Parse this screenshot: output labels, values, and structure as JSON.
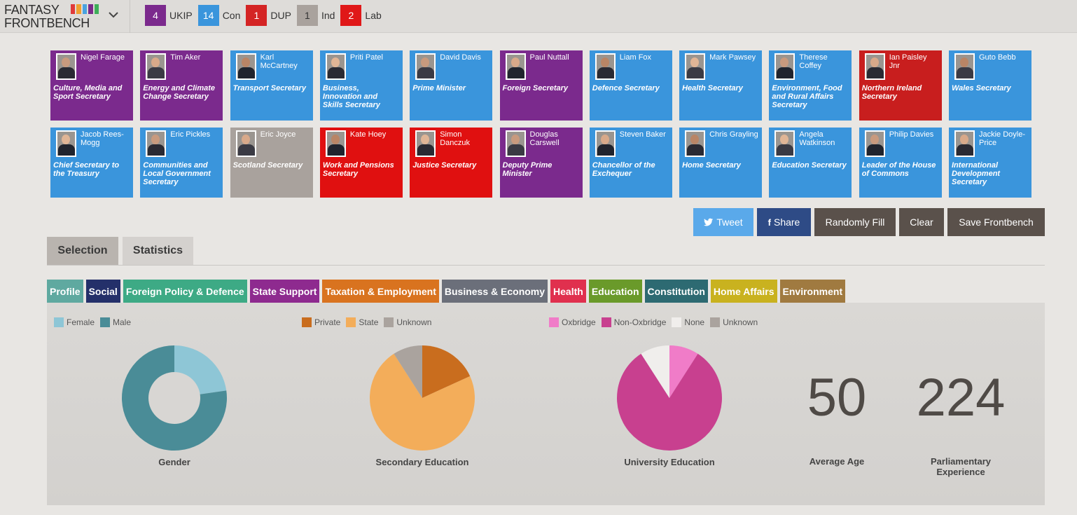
{
  "app": {
    "logo_line1": "FANTASY",
    "logo_line2": "FRONTBENCH",
    "rainbow_colors": [
      "#e03a3a",
      "#f0a030",
      "#4aa3df",
      "#7a2a8a",
      "#3fae5a"
    ]
  },
  "party_counts": [
    {
      "count": "4",
      "name": "UKIP",
      "color": "#7b2a8d"
    },
    {
      "count": "14",
      "name": "Con",
      "color": "#3a95dc"
    },
    {
      "count": "1",
      "name": "DUP",
      "color": "#d42424"
    },
    {
      "count": "1",
      "name": "Ind",
      "color": "#a9a29d"
    },
    {
      "count": "2",
      "name": "Lab",
      "color": "#e01818"
    }
  ],
  "cabinet": [
    {
      "name": "Nigel Farage",
      "role": "Culture, Media and Sport Secretary",
      "party": "UKIP"
    },
    {
      "name": "Tim Aker",
      "role": "Energy and Climate Change Secretary",
      "party": "UKIP"
    },
    {
      "name": "Karl McCartney",
      "role": "Transport Secretary",
      "party": "Con"
    },
    {
      "name": "Priti Patel",
      "role": "Business, Innovation and Skills Secretary",
      "party": "Con"
    },
    {
      "name": "David Davis",
      "role": "Prime Minister",
      "party": "Con"
    },
    {
      "name": "Paul Nuttall",
      "role": "Foreign Secretary",
      "party": "UKIP"
    },
    {
      "name": "Liam Fox",
      "role": "Defence Secretary",
      "party": "Con"
    },
    {
      "name": "Mark Pawsey",
      "role": "Health Secretary",
      "party": "Con"
    },
    {
      "name": "Therese Coffey",
      "role": "Environment, Food and Rural Affairs Secretary",
      "party": "Con"
    },
    {
      "name": "Ian Paisley Jnr",
      "role": "Northern Ireland Secretary",
      "party": "DUP"
    },
    {
      "name": "Guto Bebb",
      "role": "Wales Secretary",
      "party": "Con"
    },
    {
      "name": "Jacob Rees-Mogg",
      "role": "Chief Secretary to the Treasury",
      "party": "Con"
    },
    {
      "name": "Eric Pickles",
      "role": "Communities and Local Government Secretary",
      "party": "Con"
    },
    {
      "name": "Eric Joyce",
      "role": "Scotland Secretary",
      "party": "Ind"
    },
    {
      "name": "Kate Hoey",
      "role": "Work and Pensions Secretary",
      "party": "Lab"
    },
    {
      "name": "Simon Danczuk",
      "role": "Justice Secretary",
      "party": "Lab"
    },
    {
      "name": "Douglas Carswell",
      "role": "Deputy Prime Minister",
      "party": "UKIP"
    },
    {
      "name": "Steven Baker",
      "role": "Chancellor of the Exchequer",
      "party": "Con"
    },
    {
      "name": "Chris Grayling",
      "role": "Home Secretary",
      "party": "Con"
    },
    {
      "name": "Angela Watkinson",
      "role": "Education Secretary",
      "party": "Con"
    },
    {
      "name": "Philip Davies",
      "role": "Leader of the House of Commons",
      "party": "Con"
    },
    {
      "name": "Jackie Doyle-Price",
      "role": "International Development Secretary",
      "party": "Con"
    }
  ],
  "party_colors": {
    "UKIP": "#7b2a8d",
    "Con": "#3a95dc",
    "DUP": "#c81e1e",
    "Ind": "#a9a29d",
    "Lab": "#e01010"
  },
  "actions": {
    "tweet": "Tweet",
    "share": "Share",
    "random_fill": "Randomly Fill",
    "clear": "Clear",
    "save": "Save Frontbench"
  },
  "main_tabs": {
    "selection": "Selection",
    "statistics": "Statistics"
  },
  "sub_tabs": [
    {
      "label": "Profile",
      "color": "#5fa9a0"
    },
    {
      "label": "Social",
      "color": "#24306a"
    },
    {
      "label": "Foreign Policy & Defence",
      "color": "#3daa85"
    },
    {
      "label": "State Support",
      "color": "#8e2a8f"
    },
    {
      "label": "Taxation & Employment",
      "color": "#d9731f"
    },
    {
      "label": "Business & Economy",
      "color": "#6b6f7a"
    },
    {
      "label": "Health",
      "color": "#e0304e"
    },
    {
      "label": "Education",
      "color": "#6a9a2a"
    },
    {
      "label": "Constitution",
      "color": "#2d6a72"
    },
    {
      "label": "Home Affairs",
      "color": "#c9b21f"
    },
    {
      "label": "Environment",
      "color": "#a07a40"
    }
  ],
  "stats": {
    "average_age": "50",
    "average_age_label": "Average Age",
    "parliamentary_experience": "224",
    "parliamentary_experience_label": "Parliamentary Experience"
  },
  "chart_data": [
    {
      "type": "pie",
      "title": "Gender",
      "donut": true,
      "categories": [
        "Female",
        "Male"
      ],
      "values": [
        5,
        17
      ],
      "colors": [
        "#8ec6d6",
        "#4a8c97"
      ]
    },
    {
      "type": "pie",
      "title": "Secondary Education",
      "categories": [
        "Private",
        "State",
        "Unknown"
      ],
      "values": [
        4,
        16,
        2
      ],
      "colors": [
        "#c96d1e",
        "#f3ad5a",
        "#aaa39e"
      ]
    },
    {
      "type": "pie",
      "title": "University Education",
      "categories": [
        "Oxbridge",
        "Non-Oxbridge",
        "None",
        "Unknown"
      ],
      "values": [
        2,
        18,
        2,
        0
      ],
      "colors": [
        "#f07cc8",
        "#c8408f",
        "#f0eeec",
        "#aaa39e"
      ]
    }
  ]
}
